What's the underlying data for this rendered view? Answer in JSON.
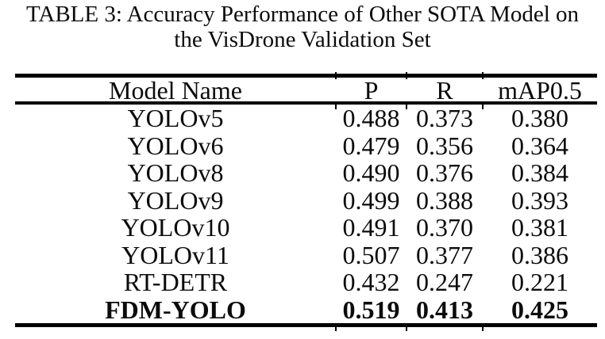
{
  "caption": {
    "line1": "TABLE 3: Accuracy Performance of Other SOTA Model on",
    "line2": "the VisDrone Validation Set"
  },
  "table": {
    "columns": [
      "Model Name",
      "P",
      "R",
      "mAP0.5"
    ],
    "rows": [
      {
        "model": "YOLOv5",
        "p": "0.488",
        "r": "0.373",
        "map05": "0.380"
      },
      {
        "model": "YOLOv6",
        "p": "0.479",
        "r": "0.356",
        "map05": "0.364"
      },
      {
        "model": "YOLOv8",
        "p": "0.490",
        "r": "0.376",
        "map05": "0.384"
      },
      {
        "model": "YOLOv9",
        "p": "0.499",
        "r": "0.388",
        "map05": "0.393"
      },
      {
        "model": "YOLOv10",
        "p": "0.491",
        "r": "0.370",
        "map05": "0.381"
      },
      {
        "model": "YOLOv11",
        "p": "0.507",
        "r": "0.377",
        "map05": "0.386"
      },
      {
        "model": "RT-DETR",
        "p": "0.432",
        "r": "0.247",
        "map05": "0.221"
      },
      {
        "model": "FDM-YOLO",
        "p": "0.519",
        "r": "0.413",
        "map05": "0.425"
      }
    ],
    "highlight_row": "FDM-YOLO",
    "text_color": "#0b0b0b",
    "rule_color": "#000000"
  }
}
